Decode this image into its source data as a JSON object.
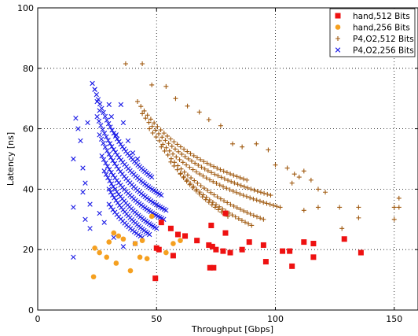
{
  "chart_data": {
    "type": "scatter",
    "title": "",
    "xlabel": "Throughput [Gbps]",
    "ylabel": "Latency [ns]",
    "xlim": [
      0,
      160
    ],
    "ylim": [
      0,
      100
    ],
    "xticks": [
      0,
      50,
      100,
      150
    ],
    "yticks": [
      0,
      20,
      40,
      60,
      80,
      100
    ],
    "grid": true,
    "legend_position": "top-right",
    "series": [
      {
        "name": "hand,512 Bits",
        "color": "#ee1111",
        "marker": "square",
        "points": [
          [
            49.5,
            10.5
          ],
          [
            50,
            20.5
          ],
          [
            51,
            20
          ],
          [
            52,
            29
          ],
          [
            56,
            27
          ],
          [
            57,
            18
          ],
          [
            59,
            25
          ],
          [
            62,
            24.5
          ],
          [
            67,
            23
          ],
          [
            72,
            21.5
          ],
          [
            72.5,
            14
          ],
          [
            73.5,
            21
          ],
          [
            74,
            14
          ],
          [
            73,
            28
          ],
          [
            75,
            20
          ],
          [
            78,
            19.5
          ],
          [
            79,
            32
          ],
          [
            81,
            19
          ],
          [
            79,
            25.5
          ],
          [
            86,
            20
          ],
          [
            89,
            22.5
          ],
          [
            95,
            21.5
          ],
          [
            96,
            16
          ],
          [
            103,
            19.5
          ],
          [
            106,
            19.5
          ],
          [
            107,
            14.5
          ],
          [
            112,
            22.5
          ],
          [
            116,
            22
          ],
          [
            116,
            17.5
          ],
          [
            129,
            23.5
          ],
          [
            136,
            19
          ]
        ]
      },
      {
        "name": "hand,256 Bits",
        "color": "#f5a020",
        "marker": "circle",
        "points": [
          [
            23.5,
            11
          ],
          [
            24,
            20.5
          ],
          [
            26,
            19
          ],
          [
            29,
            17.5
          ],
          [
            30,
            22.5
          ],
          [
            32,
            25.5
          ],
          [
            33,
            15.5
          ],
          [
            34,
            24.5
          ],
          [
            36,
            23.5
          ],
          [
            39,
            13
          ],
          [
            41,
            22
          ],
          [
            43,
            17.5
          ],
          [
            44,
            23
          ],
          [
            46,
            17
          ],
          [
            48,
            31
          ],
          [
            50,
            20.5
          ],
          [
            54,
            19
          ],
          [
            57,
            22
          ],
          [
            60,
            23
          ]
        ]
      },
      {
        "name": "P4,O2,512 Bits",
        "color": "#a05a10",
        "marker": "plus",
        "curves": [
          {
            "x0": 42,
            "y0": 69,
            "x1": 88,
            "y1": 43,
            "n": 34
          },
          {
            "x0": 44,
            "y0": 65,
            "x1": 98,
            "y1": 38,
            "n": 40
          },
          {
            "x0": 47,
            "y0": 60,
            "x1": 102,
            "y1": 34,
            "n": 40
          },
          {
            "x0": 52,
            "y0": 54,
            "x1": 95,
            "y1": 30,
            "n": 32
          },
          {
            "x0": 56,
            "y0": 49,
            "x1": 90,
            "y1": 28,
            "n": 26
          },
          {
            "x0": 60,
            "y0": 45,
            "x1": 80,
            "y1": 31,
            "n": 16
          }
        ],
        "extra_points": [
          [
            37,
            81.5
          ],
          [
            44,
            81.5
          ],
          [
            48,
            74.5
          ],
          [
            54,
            74
          ],
          [
            58,
            70
          ],
          [
            63,
            67.5
          ],
          [
            68,
            65.5
          ],
          [
            72,
            63
          ],
          [
            77,
            61
          ],
          [
            82,
            55
          ],
          [
            86,
            54
          ],
          [
            92,
            55
          ],
          [
            97,
            53
          ],
          [
            100,
            48
          ],
          [
            105,
            47
          ],
          [
            108,
            45
          ],
          [
            107,
            42
          ],
          [
            110,
            44
          ],
          [
            112,
            46
          ],
          [
            115,
            43
          ],
          [
            118,
            40
          ],
          [
            121,
            39
          ],
          [
            118,
            34
          ],
          [
            127,
            34
          ],
          [
            135,
            34
          ],
          [
            135,
            30.5
          ],
          [
            150,
            34
          ],
          [
            152,
            37
          ],
          [
            152,
            34
          ],
          [
            150,
            30
          ],
          [
            128,
            27
          ],
          [
            112,
            33
          ]
        ]
      },
      {
        "name": "P4,O2,256 Bits",
        "color": "#1a1ae6",
        "marker": "x",
        "curves": [
          {
            "x0": 24,
            "y0": 73,
            "x1": 48,
            "y1": 44,
            "n": 34
          },
          {
            "x0": 25,
            "y0": 64,
            "x1": 52,
            "y1": 38,
            "n": 36
          },
          {
            "x0": 26,
            "y0": 58,
            "x1": 54,
            "y1": 33,
            "n": 36
          },
          {
            "x0": 27,
            "y0": 51,
            "x1": 53,
            "y1": 30,
            "n": 34
          },
          {
            "x0": 28,
            "y0": 46,
            "x1": 50,
            "y1": 27,
            "n": 30
          },
          {
            "x0": 30,
            "y0": 40,
            "x1": 47,
            "y1": 25,
            "n": 24
          },
          {
            "x0": 30,
            "y0": 35,
            "x1": 44,
            "y1": 24,
            "n": 18
          }
        ],
        "extra_points": [
          [
            15,
            17.5
          ],
          [
            15,
            34
          ],
          [
            15,
            50
          ],
          [
            16,
            63.5
          ],
          [
            17,
            60
          ],
          [
            18,
            56
          ],
          [
            19,
            47
          ],
          [
            19,
            39
          ],
          [
            20,
            30
          ],
          [
            22,
            27
          ],
          [
            20,
            42
          ],
          [
            21,
            62
          ],
          [
            23,
            75
          ],
          [
            24,
            73
          ],
          [
            25,
            69
          ],
          [
            26,
            66
          ],
          [
            30,
            68
          ],
          [
            31,
            64
          ],
          [
            33,
            58
          ],
          [
            35,
            68
          ],
          [
            36,
            62
          ],
          [
            38,
            56
          ],
          [
            40,
            52
          ],
          [
            42,
            50
          ],
          [
            41,
            22
          ],
          [
            36,
            21
          ],
          [
            32,
            24
          ],
          [
            28,
            29
          ],
          [
            26,
            32
          ],
          [
            22,
            35
          ]
        ]
      }
    ]
  }
}
